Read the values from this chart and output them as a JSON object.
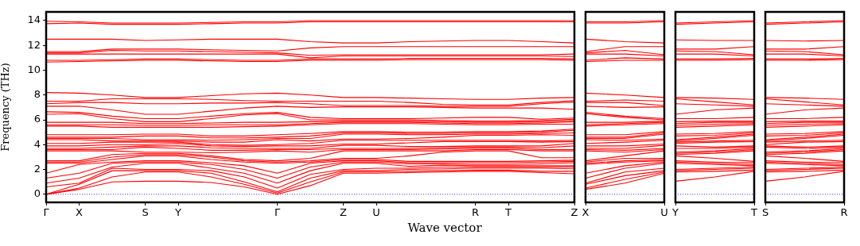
{
  "chart_data": [
    {
      "type": "line",
      "ylabel": "Frequency (THz)",
      "xlabel": "Wave vector",
      "categories": [
        "Γ",
        "X",
        null,
        "S",
        "Y",
        null,
        null,
        "Γ",
        null,
        "Z",
        "U",
        null,
        null,
        "R",
        "T",
        null,
        "Z"
      ],
      "ylim": [
        -0.65,
        14.7
      ],
      "yticks": [
        0,
        2,
        4,
        6,
        8,
        10,
        12,
        14
      ],
      "grid": false,
      "legend": false,
      "marker": "none",
      "line_style": "solid",
      "ref_lines": [
        {
          "axis": "y",
          "value": 0,
          "color": "#0000ff",
          "line_style": "dotted"
        }
      ],
      "series": [
        {
          "color": "#ff0000",
          "values": [
            0,
            0.4,
            1.0,
            1.05,
            1.05,
            0.95,
            0.6,
            0,
            0.7,
            1.7,
            1.7,
            1.75,
            1.8,
            1.85,
            1.85,
            1.75,
            1.65
          ]
        },
        {
          "color": "#ff0000",
          "values": [
            0,
            0.5,
            1.4,
            1.8,
            1.8,
            1.4,
            0.8,
            0.1,
            1.0,
            1.8,
            1.8,
            1.85,
            1.9,
            1.95,
            1.95,
            1.85,
            1.85
          ]
        },
        {
          "color": "#ff0000",
          "values": [
            0,
            0.8,
            1.9,
            1.9,
            1.9,
            1.7,
            1.0,
            0.2,
            1.3,
            1.9,
            1.9,
            2.0,
            2.05,
            2.1,
            2.1,
            2.1,
            2.05
          ]
        },
        {
          "color": "#ff0000",
          "values": [
            0.6,
            0.9,
            2.1,
            2.0,
            2.0,
            1.9,
            1.4,
            0.5,
            1.6,
            2.0,
            2.1,
            2.1,
            2.2,
            2.2,
            2.2,
            2.2,
            2.2
          ]
        },
        {
          "color": "#ff0000",
          "values": [
            0.9,
            1.3,
            2.2,
            2.5,
            2.5,
            2.1,
            1.7,
            0.9,
            1.9,
            2.5,
            2.5,
            2.25,
            2.35,
            2.3,
            2.3,
            2.3,
            2.3
          ]
        },
        {
          "color": "#ff0000",
          "values": [
            1.3,
            1.7,
            2.5,
            2.6,
            2.6,
            2.4,
            2.0,
            1.3,
            2.2,
            2.6,
            2.6,
            2.45,
            2.45,
            2.4,
            2.4,
            2.45,
            2.55
          ]
        },
        {
          "color": "#ff0000",
          "values": [
            1.7,
            2.4,
            2.6,
            2.7,
            2.7,
            2.55,
            2.3,
            1.7,
            2.5,
            2.7,
            2.7,
            2.55,
            2.55,
            2.55,
            2.55,
            2.6,
            2.65
          ]
        },
        {
          "color": "#ff0000",
          "values": [
            2.5,
            2.5,
            2.8,
            3.1,
            3.1,
            2.8,
            2.6,
            2.5,
            2.6,
            2.8,
            2.8,
            2.65,
            2.65,
            2.65,
            2.65,
            2.7,
            2.75
          ]
        },
        {
          "color": "#ff0000",
          "values": [
            2.6,
            2.6,
            3.0,
            3.2,
            3.2,
            3.0,
            2.7,
            2.6,
            2.7,
            2.9,
            2.9,
            3.1,
            3.4,
            3.5,
            3.5,
            2.95,
            2.95
          ]
        },
        {
          "color": "#ff0000",
          "values": [
            2.7,
            2.7,
            3.2,
            3.3,
            3.3,
            3.1,
            2.8,
            2.7,
            2.9,
            3.5,
            3.5,
            3.5,
            3.5,
            3.6,
            3.6,
            3.5,
            3.5
          ]
        },
        {
          "color": "#ff0000",
          "values": [
            3.5,
            3.5,
            3.5,
            3.4,
            3.4,
            3.35,
            3.4,
            3.5,
            3.4,
            3.6,
            3.6,
            3.6,
            3.65,
            3.7,
            3.7,
            3.6,
            3.6
          ]
        },
        {
          "color": "#ff0000",
          "values": [
            3.6,
            3.6,
            3.6,
            3.8,
            3.7,
            3.55,
            3.55,
            3.6,
            3.6,
            3.7,
            3.7,
            3.7,
            3.75,
            3.8,
            3.8,
            3.75,
            3.9
          ]
        },
        {
          "color": "#ff0000",
          "values": [
            3.7,
            3.7,
            3.8,
            3.9,
            3.9,
            3.75,
            3.7,
            3.7,
            3.7,
            3.95,
            3.95,
            3.85,
            3.85,
            3.9,
            3.9,
            3.9,
            4.1
          ]
        },
        {
          "color": "#ff0000",
          "values": [
            3.9,
            3.9,
            4.0,
            4.0,
            4.1,
            3.9,
            3.85,
            3.9,
            3.9,
            4.05,
            4.05,
            4.15,
            4.25,
            4.25,
            4.25,
            4.2,
            4.25
          ]
        },
        {
          "color": "#ff0000",
          "values": [
            4.1,
            4.1,
            4.2,
            4.2,
            4.2,
            4.0,
            3.95,
            4.0,
            4.1,
            4.35,
            4.35,
            4.35,
            4.35,
            4.35,
            4.35,
            4.3,
            4.35
          ]
        },
        {
          "color": "#ff0000",
          "values": [
            4.4,
            4.4,
            4.3,
            4.3,
            4.3,
            4.2,
            4.2,
            4.4,
            4.3,
            4.45,
            4.45,
            4.5,
            4.6,
            4.75,
            4.75,
            4.8,
            4.75
          ]
        },
        {
          "color": "#ff0000",
          "values": [
            4.5,
            4.5,
            4.5,
            4.4,
            4.4,
            4.35,
            4.4,
            4.5,
            4.5,
            4.85,
            4.85,
            4.8,
            4.8,
            4.85,
            4.85,
            4.9,
            4.95
          ]
        },
        {
          "color": "#ff0000",
          "values": [
            4.6,
            4.6,
            4.6,
            4.7,
            4.7,
            4.55,
            4.55,
            4.6,
            4.7,
            4.95,
            4.95,
            4.9,
            4.9,
            4.95,
            4.95,
            5.0,
            5.15
          ]
        },
        {
          "color": "#ff0000",
          "values": [
            4.8,
            4.8,
            4.8,
            4.85,
            4.85,
            4.7,
            4.7,
            4.8,
            4.9,
            5.05,
            5.05,
            5.0,
            5.0,
            5.05,
            5.05,
            5.1,
            5.25
          ]
        },
        {
          "color": "#ff0000",
          "values": [
            5.5,
            5.5,
            5.4,
            5.4,
            5.4,
            5.4,
            5.45,
            5.5,
            5.6,
            5.7,
            5.7,
            5.7,
            5.65,
            5.6,
            5.6,
            5.65,
            5.65
          ]
        },
        {
          "color": "#ff0000",
          "values": [
            5.6,
            5.6,
            5.6,
            5.55,
            5.55,
            5.6,
            5.6,
            5.6,
            5.7,
            5.8,
            5.8,
            5.8,
            5.75,
            5.7,
            5.7,
            5.75,
            5.85
          ]
        },
        {
          "color": "#ff0000",
          "values": [
            5.8,
            5.8,
            5.8,
            5.7,
            5.7,
            5.75,
            5.8,
            5.8,
            5.85,
            5.9,
            5.9,
            5.9,
            5.85,
            5.8,
            5.8,
            5.85,
            5.95
          ]
        },
        {
          "color": "#ff0000",
          "values": [
            6.45,
            6.5,
            6.1,
            5.85,
            5.85,
            6.1,
            6.4,
            6.5,
            6.0,
            6.0,
            6.0,
            6.0,
            5.95,
            5.9,
            5.9,
            5.95,
            6.05
          ]
        },
        {
          "color": "#ff0000",
          "values": [
            6.65,
            6.6,
            6.3,
            6.1,
            6.1,
            6.3,
            6.5,
            6.6,
            6.2,
            6.1,
            6.1,
            6.1,
            6.15,
            6.2,
            6.2,
            6.05,
            6.15
          ]
        },
        {
          "color": "#ff0000",
          "values": [
            7.1,
            7.1,
            6.8,
            6.45,
            6.45,
            6.7,
            6.95,
            7.1,
            7.0,
            7.05,
            7.05,
            7.05,
            7.0,
            6.95,
            6.95,
            6.95,
            6.85
          ]
        },
        {
          "color": "#ff0000",
          "values": [
            7.3,
            7.4,
            7.4,
            7.3,
            7.3,
            7.35,
            7.35,
            7.4,
            7.3,
            7.15,
            7.15,
            7.15,
            7.1,
            7.1,
            7.1,
            7.3,
            7.45
          ]
        },
        {
          "color": "#ff0000",
          "values": [
            7.5,
            7.5,
            7.7,
            7.7,
            7.7,
            7.65,
            7.55,
            7.5,
            7.5,
            7.5,
            7.5,
            7.4,
            7.25,
            7.2,
            7.2,
            7.4,
            7.55
          ]
        },
        {
          "color": "#ff0000",
          "values": [
            8.2,
            8.15,
            8.0,
            7.8,
            7.8,
            7.95,
            8.1,
            8.15,
            8.0,
            7.8,
            7.8,
            7.75,
            7.7,
            7.65,
            7.65,
            7.75,
            7.8
          ]
        },
        {
          "color": "#ff0000",
          "values": [
            10.65,
            10.7,
            10.75,
            10.8,
            10.8,
            10.75,
            10.7,
            10.7,
            10.8,
            10.8,
            10.8,
            10.85,
            10.85,
            10.85,
            10.85,
            10.85,
            10.8
          ]
        },
        {
          "color": "#ff0000",
          "values": [
            10.8,
            10.8,
            10.85,
            10.9,
            10.9,
            10.85,
            10.8,
            10.8,
            10.9,
            10.9,
            10.9,
            10.95,
            10.95,
            10.95,
            10.95,
            10.95,
            10.9
          ]
        },
        {
          "color": "#ff0000",
          "values": [
            11.3,
            11.3,
            11.3,
            11.3,
            11.3,
            11.3,
            11.3,
            11.3,
            11.0,
            11.15,
            11.15,
            11.15,
            11.15,
            11.15,
            11.15,
            11.15,
            11.1
          ]
        },
        {
          "color": "#ff0000",
          "values": [
            11.4,
            11.4,
            11.6,
            11.55,
            11.55,
            11.5,
            11.45,
            11.4,
            11.2,
            11.25,
            11.25,
            11.25,
            11.25,
            11.25,
            11.25,
            11.25,
            11.3
          ]
        },
        {
          "color": "#ff0000",
          "values": [
            11.5,
            11.5,
            11.7,
            11.7,
            11.7,
            11.65,
            11.6,
            11.55,
            11.8,
            11.9,
            11.9,
            11.9,
            11.9,
            11.9,
            11.9,
            11.9,
            11.9
          ]
        },
        {
          "color": "#ff0000",
          "values": [
            12.5,
            12.5,
            12.5,
            12.4,
            12.45,
            12.5,
            12.5,
            12.5,
            12.3,
            12.2,
            12.2,
            12.3,
            12.35,
            12.4,
            12.4,
            12.3,
            12.2
          ]
        },
        {
          "color": "#ff0000",
          "values": [
            13.75,
            13.8,
            13.7,
            13.7,
            13.7,
            13.75,
            13.8,
            13.8,
            13.9,
            13.9,
            13.9,
            13.9,
            13.9,
            13.9,
            13.9,
            13.9,
            13.9
          ]
        },
        {
          "color": "#ff0000",
          "values": [
            13.95,
            13.9,
            13.8,
            13.8,
            13.8,
            13.85,
            13.9,
            13.9,
            14.0,
            14.0,
            14.0,
            14.0,
            14.0,
            14.0,
            14.0,
            14.0,
            14.0
          ]
        }
      ]
    },
    {
      "type": "line",
      "categories": [
        "X",
        null,
        "U"
      ],
      "ylim": [
        -0.65,
        14.7
      ],
      "yticks": [
        0,
        2,
        4,
        6,
        8,
        10,
        12,
        14
      ],
      "tick_labels": "x",
      "grid": false,
      "legend": false,
      "marker": "none",
      "line_style": "solid",
      "ref_lines": [
        {
          "axis": "y",
          "value": 0,
          "color": "#0000ff",
          "line_style": "dotted"
        }
      ],
      "series": [
        {
          "color": "#ff0000",
          "values": [
            0.4,
            0.9,
            1.7
          ]
        },
        {
          "color": "#ff0000",
          "values": [
            0.5,
            1.2,
            1.8
          ]
        },
        {
          "color": "#ff0000",
          "values": [
            0.8,
            1.5,
            1.9
          ]
        },
        {
          "color": "#ff0000",
          "values": [
            0.9,
            1.8,
            2.1
          ]
        },
        {
          "color": "#ff0000",
          "values": [
            1.3,
            2.1,
            2.5
          ]
        },
        {
          "color": "#ff0000",
          "values": [
            1.7,
            2.3,
            2.6
          ]
        },
        {
          "color": "#ff0000",
          "values": [
            2.4,
            2.6,
            2.7
          ]
        },
        {
          "color": "#ff0000",
          "values": [
            2.5,
            2.7,
            2.8
          ]
        },
        {
          "color": "#ff0000",
          "values": [
            2.6,
            2.9,
            2.9
          ]
        },
        {
          "color": "#ff0000",
          "values": [
            2.7,
            3.1,
            3.5
          ]
        },
        {
          "color": "#ff0000",
          "values": [
            3.5,
            3.4,
            3.6
          ]
        },
        {
          "color": "#ff0000",
          "values": [
            3.6,
            3.55,
            3.7
          ]
        },
        {
          "color": "#ff0000",
          "values": [
            3.7,
            3.7,
            3.95
          ]
        },
        {
          "color": "#ff0000",
          "values": [
            3.9,
            3.9,
            4.05
          ]
        },
        {
          "color": "#ff0000",
          "values": [
            4.1,
            4.2,
            4.35
          ]
        },
        {
          "color": "#ff0000",
          "values": [
            4.4,
            4.35,
            4.45
          ]
        },
        {
          "color": "#ff0000",
          "values": [
            4.5,
            4.5,
            4.85
          ]
        },
        {
          "color": "#ff0000",
          "values": [
            4.6,
            4.6,
            4.95
          ]
        },
        {
          "color": "#ff0000",
          "values": [
            4.8,
            4.8,
            5.05
          ]
        },
        {
          "color": "#ff0000",
          "values": [
            5.5,
            5.6,
            5.7
          ]
        },
        {
          "color": "#ff0000",
          "values": [
            5.6,
            5.7,
            5.8
          ]
        },
        {
          "color": "#ff0000",
          "values": [
            5.8,
            5.8,
            5.9
          ]
        },
        {
          "color": "#ff0000",
          "values": [
            6.5,
            6.2,
            6.0
          ]
        },
        {
          "color": "#ff0000",
          "values": [
            6.6,
            6.3,
            6.1
          ]
        },
        {
          "color": "#ff0000",
          "values": [
            7.1,
            7.0,
            7.05
          ]
        },
        {
          "color": "#ff0000",
          "values": [
            7.4,
            7.4,
            7.15
          ]
        },
        {
          "color": "#ff0000",
          "values": [
            7.5,
            7.6,
            7.5
          ]
        },
        {
          "color": "#ff0000",
          "values": [
            8.15,
            8.0,
            7.8
          ]
        },
        {
          "color": "#ff0000",
          "values": [
            10.7,
            10.8,
            10.8
          ]
        },
        {
          "color": "#ff0000",
          "values": [
            10.8,
            11.0,
            10.9
          ]
        },
        {
          "color": "#ff0000",
          "values": [
            11.3,
            11.3,
            11.15
          ]
        },
        {
          "color": "#ff0000",
          "values": [
            11.4,
            11.6,
            11.25
          ]
        },
        {
          "color": "#ff0000",
          "values": [
            11.5,
            11.9,
            11.9
          ]
        },
        {
          "color": "#ff0000",
          "values": [
            12.5,
            12.3,
            12.2
          ]
        },
        {
          "color": "#ff0000",
          "values": [
            13.8,
            13.8,
            13.9
          ]
        },
        {
          "color": "#ff0000",
          "values": [
            13.9,
            13.9,
            14.0
          ]
        }
      ]
    },
    {
      "type": "line",
      "categories": [
        "Y",
        null,
        "T"
      ],
      "ylim": [
        -0.65,
        14.7
      ],
      "yticks": [
        0,
        2,
        4,
        6,
        8,
        10,
        12,
        14
      ],
      "tick_labels": "x",
      "grid": false,
      "legend": false,
      "marker": "none",
      "line_style": "solid",
      "ref_lines": [
        {
          "axis": "y",
          "value": 0,
          "color": "#0000ff",
          "line_style": "dotted"
        }
      ],
      "series": [
        {
          "color": "#ff0000",
          "values": [
            1.05,
            1.4,
            1.85
          ]
        },
        {
          "color": "#ff0000",
          "values": [
            1.8,
            1.85,
            1.95
          ]
        },
        {
          "color": "#ff0000",
          "values": [
            1.9,
            2.0,
            2.1
          ]
        },
        {
          "color": "#ff0000",
          "values": [
            2.0,
            2.1,
            2.2
          ]
        },
        {
          "color": "#ff0000",
          "values": [
            2.5,
            2.4,
            2.3
          ]
        },
        {
          "color": "#ff0000",
          "values": [
            2.6,
            2.5,
            2.4
          ]
        },
        {
          "color": "#ff0000",
          "values": [
            2.7,
            2.6,
            2.55
          ]
        },
        {
          "color": "#ff0000",
          "values": [
            3.1,
            2.9,
            2.65
          ]
        },
        {
          "color": "#ff0000",
          "values": [
            3.2,
            3.3,
            3.5
          ]
        },
        {
          "color": "#ff0000",
          "values": [
            3.3,
            3.4,
            3.6
          ]
        },
        {
          "color": "#ff0000",
          "values": [
            3.4,
            3.5,
            3.7
          ]
        },
        {
          "color": "#ff0000",
          "values": [
            3.7,
            3.7,
            3.8
          ]
        },
        {
          "color": "#ff0000",
          "values": [
            3.9,
            3.8,
            3.9
          ]
        },
        {
          "color": "#ff0000",
          "values": [
            4.1,
            4.2,
            4.25
          ]
        },
        {
          "color": "#ff0000",
          "values": [
            4.2,
            4.3,
            4.35
          ]
        },
        {
          "color": "#ff0000",
          "values": [
            4.3,
            4.5,
            4.75
          ]
        },
        {
          "color": "#ff0000",
          "values": [
            4.4,
            4.6,
            4.85
          ]
        },
        {
          "color": "#ff0000",
          "values": [
            4.7,
            4.75,
            4.95
          ]
        },
        {
          "color": "#ff0000",
          "values": [
            4.85,
            4.9,
            5.05
          ]
        },
        {
          "color": "#ff0000",
          "values": [
            5.4,
            5.5,
            5.6
          ]
        },
        {
          "color": "#ff0000",
          "values": [
            5.55,
            5.65,
            5.7
          ]
        },
        {
          "color": "#ff0000",
          "values": [
            5.7,
            5.8,
            5.8
          ]
        },
        {
          "color": "#ff0000",
          "values": [
            5.85,
            5.9,
            5.9
          ]
        },
        {
          "color": "#ff0000",
          "values": [
            6.1,
            6.1,
            6.2
          ]
        },
        {
          "color": "#ff0000",
          "values": [
            6.45,
            6.8,
            6.95
          ]
        },
        {
          "color": "#ff0000",
          "values": [
            7.3,
            7.2,
            7.1
          ]
        },
        {
          "color": "#ff0000",
          "values": [
            7.7,
            7.45,
            7.2
          ]
        },
        {
          "color": "#ff0000",
          "values": [
            7.8,
            7.75,
            7.65
          ]
        },
        {
          "color": "#ff0000",
          "values": [
            10.8,
            10.8,
            10.85
          ]
        },
        {
          "color": "#ff0000",
          "values": [
            10.9,
            10.9,
            10.95
          ]
        },
        {
          "color": "#ff0000",
          "values": [
            11.3,
            11.3,
            11.15
          ]
        },
        {
          "color": "#ff0000",
          "values": [
            11.55,
            11.5,
            11.25
          ]
        },
        {
          "color": "#ff0000",
          "values": [
            11.7,
            11.7,
            11.9
          ]
        },
        {
          "color": "#ff0000",
          "values": [
            12.45,
            12.4,
            12.4
          ]
        },
        {
          "color": "#ff0000",
          "values": [
            13.7,
            13.8,
            13.9
          ]
        },
        {
          "color": "#ff0000",
          "values": [
            13.8,
            13.9,
            14.0
          ]
        }
      ]
    },
    {
      "type": "line",
      "categories": [
        "S",
        null,
        "R"
      ],
      "ylim": [
        -0.65,
        14.7
      ],
      "yticks": [
        0,
        2,
        4,
        6,
        8,
        10,
        12,
        14
      ],
      "tick_labels": "x",
      "grid": false,
      "legend": false,
      "marker": "none",
      "line_style": "solid",
      "ref_lines": [
        {
          "axis": "y",
          "value": 0,
          "color": "#0000ff",
          "line_style": "dotted"
        }
      ],
      "series": [
        {
          "color": "#ff0000",
          "values": [
            1.05,
            1.4,
            1.85
          ]
        },
        {
          "color": "#ff0000",
          "values": [
            1.8,
            1.85,
            1.95
          ]
        },
        {
          "color": "#ff0000",
          "values": [
            1.9,
            2.0,
            2.1
          ]
        },
        {
          "color": "#ff0000",
          "values": [
            2.0,
            2.1,
            2.2
          ]
        },
        {
          "color": "#ff0000",
          "values": [
            2.5,
            2.4,
            2.3
          ]
        },
        {
          "color": "#ff0000",
          "values": [
            2.6,
            2.5,
            2.4
          ]
        },
        {
          "color": "#ff0000",
          "values": [
            2.7,
            2.6,
            2.55
          ]
        },
        {
          "color": "#ff0000",
          "values": [
            3.1,
            2.9,
            2.65
          ]
        },
        {
          "color": "#ff0000",
          "values": [
            3.2,
            3.3,
            3.5
          ]
        },
        {
          "color": "#ff0000",
          "values": [
            3.3,
            3.4,
            3.6
          ]
        },
        {
          "color": "#ff0000",
          "values": [
            3.4,
            3.5,
            3.7
          ]
        },
        {
          "color": "#ff0000",
          "values": [
            3.8,
            3.7,
            3.8
          ]
        },
        {
          "color": "#ff0000",
          "values": [
            3.9,
            3.8,
            3.9
          ]
        },
        {
          "color": "#ff0000",
          "values": [
            4.0,
            4.2,
            4.25
          ]
        },
        {
          "color": "#ff0000",
          "values": [
            4.2,
            4.3,
            4.35
          ]
        },
        {
          "color": "#ff0000",
          "values": [
            4.3,
            4.5,
            4.75
          ]
        },
        {
          "color": "#ff0000",
          "values": [
            4.4,
            4.6,
            4.85
          ]
        },
        {
          "color": "#ff0000",
          "values": [
            4.7,
            4.75,
            4.95
          ]
        },
        {
          "color": "#ff0000",
          "values": [
            4.85,
            4.9,
            5.05
          ]
        },
        {
          "color": "#ff0000",
          "values": [
            5.4,
            5.5,
            5.6
          ]
        },
        {
          "color": "#ff0000",
          "values": [
            5.55,
            5.65,
            5.7
          ]
        },
        {
          "color": "#ff0000",
          "values": [
            5.7,
            5.8,
            5.8
          ]
        },
        {
          "color": "#ff0000",
          "values": [
            5.85,
            5.9,
            5.9
          ]
        },
        {
          "color": "#ff0000",
          "values": [
            6.1,
            6.1,
            6.2
          ]
        },
        {
          "color": "#ff0000",
          "values": [
            6.45,
            6.8,
            6.95
          ]
        },
        {
          "color": "#ff0000",
          "values": [
            7.3,
            7.2,
            7.1
          ]
        },
        {
          "color": "#ff0000",
          "values": [
            7.7,
            7.45,
            7.2
          ]
        },
        {
          "color": "#ff0000",
          "values": [
            7.8,
            7.75,
            7.65
          ]
        },
        {
          "color": "#ff0000",
          "values": [
            10.8,
            10.8,
            10.85
          ]
        },
        {
          "color": "#ff0000",
          "values": [
            10.9,
            10.9,
            10.95
          ]
        },
        {
          "color": "#ff0000",
          "values": [
            11.3,
            11.3,
            11.15
          ]
        },
        {
          "color": "#ff0000",
          "values": [
            11.55,
            11.5,
            11.25
          ]
        },
        {
          "color": "#ff0000",
          "values": [
            11.7,
            11.7,
            11.9
          ]
        },
        {
          "color": "#ff0000",
          "values": [
            12.4,
            12.35,
            12.4
          ]
        },
        {
          "color": "#ff0000",
          "values": [
            13.7,
            13.8,
            13.9
          ]
        },
        {
          "color": "#ff0000",
          "values": [
            13.8,
            13.9,
            14.0
          ]
        }
      ]
    }
  ]
}
